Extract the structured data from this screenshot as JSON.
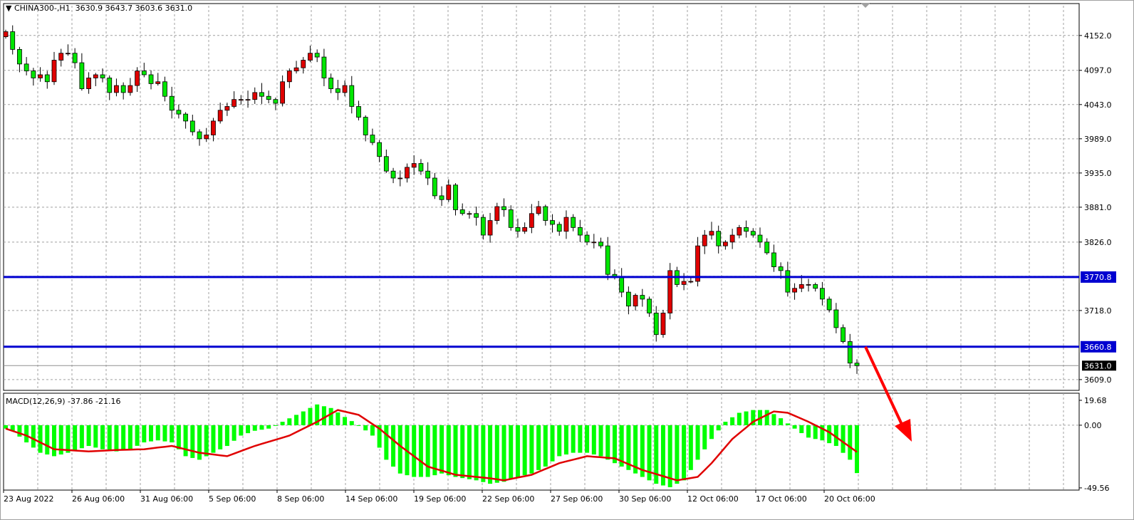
{
  "header": {
    "symbol": "CHINA300-,H1",
    "open": "3630.9",
    "high": "3643.7",
    "low": "3603.6",
    "close": "3631.0"
  },
  "macd_header": {
    "label": "MACD(12,26,9)",
    "main": "-37.86",
    "signal": "-21.16"
  },
  "colors": {
    "bull": "#e00000",
    "bear": "#00e600",
    "hline": "#0000d0",
    "histogram": "#00ff00",
    "signal": "#e00000",
    "arrow": "#ff0000"
  },
  "chart_data": [
    {
      "type": "candlestick",
      "ylim": [
        3592,
        4199
      ],
      "grid": true,
      "price_ticks": [
        "4152.0",
        "4097.0",
        "4043.0",
        "3989.0",
        "3935.0",
        "3881.0",
        "3826.0",
        "3718.0",
        "3609.0"
      ],
      "price_tick_values": [
        4152,
        4097,
        4043,
        3989,
        3935,
        3881,
        3826,
        3718,
        3609
      ],
      "x_tick_labels": [
        "23 Aug 2022",
        "26 Aug 06:00",
        "31 Aug 06:00",
        "5 Sep 06:00",
        "8 Sep 06:00",
        "14 Sep 06:00",
        "19 Sep 06:00",
        "22 Sep 06:00",
        "27 Sep 06:00",
        "30 Sep 06:00",
        "12 Oct 06:00",
        "17 Oct 06:00",
        "20 Oct 06:00"
      ],
      "first_open": 4150,
      "close": [
        4158,
        4130,
        4107,
        4096,
        4085,
        4090,
        4079,
        4113,
        4124,
        4124,
        4109,
        4068,
        4085,
        4090,
        4085,
        4062,
        4073,
        4062,
        4073,
        4096,
        4090,
        4076,
        4079,
        4056,
        4034,
        4028,
        4017,
        4000,
        3989,
        3995,
        4017,
        4034,
        4040,
        4051,
        4051,
        4051,
        4062,
        4056,
        4051,
        4045,
        4079,
        4096,
        4101,
        4113,
        4124,
        4118,
        4085,
        4068,
        4062,
        4073,
        4040,
        4023,
        3995,
        3983,
        3961,
        3938,
        3927,
        3927,
        3944,
        3950,
        3938,
        3927,
        3899,
        3893,
        3916,
        3877,
        3871,
        3871,
        3865,
        3837,
        3860,
        3882,
        3877,
        3849,
        3843,
        3849,
        3871,
        3882,
        3860,
        3854,
        3843,
        3865,
        3849,
        3837,
        3826,
        3826,
        3820,
        3775,
        3770,
        3747,
        3725,
        3742,
        3736,
        3714,
        3680,
        3714,
        3781,
        3759,
        3764,
        3764,
        3820,
        3837,
        3843,
        3820,
        3826,
        3837,
        3849,
        3843,
        3837,
        3826,
        3809,
        3787,
        3781,
        3747,
        3753,
        3759,
        3759,
        3753,
        3736,
        3719,
        3691,
        3669,
        3635,
        3631
      ],
      "horizontal_levels": [
        {
          "value": 3770.8,
          "label": "3770.8"
        },
        {
          "value": 3660.8,
          "label": "3660.8"
        }
      ],
      "current_price": {
        "value": 3631.0,
        "label": "3631.0"
      }
    },
    {
      "type": "bar+line",
      "title": "MACD(12,26,9)",
      "ylim": [
        -51.3,
        25.3
      ],
      "y_ticks": [
        "19.68",
        "0.00",
        "-49.56"
      ],
      "y_tick_values": [
        19.68,
        0,
        -49.56
      ],
      "histogram_points": [
        [
          0,
          -2.7
        ],
        [
          1,
          -4.4
        ],
        [
          3,
          -13.6
        ],
        [
          5,
          -21.8
        ],
        [
          7,
          -24.5
        ],
        [
          9,
          -21.8
        ],
        [
          12,
          -16.4
        ],
        [
          14,
          -19
        ],
        [
          16,
          -20.7
        ],
        [
          18,
          -19
        ],
        [
          20,
          -13.6
        ],
        [
          22,
          -12
        ],
        [
          24,
          -13.6
        ],
        [
          26,
          -24.5
        ],
        [
          28,
          -27.3
        ],
        [
          30,
          -21.8
        ],
        [
          32,
          -16.4
        ],
        [
          34,
          -8.2
        ],
        [
          36,
          -4.4
        ],
        [
          38,
          -2.7
        ],
        [
          40,
          2.7
        ],
        [
          43,
          10.9
        ],
        [
          45,
          16.4
        ],
        [
          47,
          13.6
        ],
        [
          49,
          6.5
        ],
        [
          51,
          0
        ],
        [
          53,
          -8.2
        ],
        [
          55,
          -27.3
        ],
        [
          57,
          -38.2
        ],
        [
          59,
          -40.9
        ],
        [
          61,
          -40.9
        ],
        [
          63,
          -38.2
        ],
        [
          65,
          -40.9
        ],
        [
          68,
          -43.6
        ],
        [
          70,
          -46.3
        ],
        [
          72,
          -44.7
        ],
        [
          74,
          -40.9
        ],
        [
          76,
          -38.2
        ],
        [
          78,
          -32.7
        ],
        [
          80,
          -24.5
        ],
        [
          82,
          -21.8
        ],
        [
          84,
          -21.8
        ],
        [
          86,
          -24.5
        ],
        [
          88,
          -30
        ],
        [
          90,
          -35.4
        ],
        [
          92,
          -40.9
        ],
        [
          94,
          -46.3
        ],
        [
          96,
          -49
        ],
        [
          98,
          -43.6
        ],
        [
          100,
          -27.3
        ],
        [
          102,
          -10.9
        ],
        [
          104,
          2.7
        ],
        [
          106,
          9.8
        ],
        [
          108,
          12
        ],
        [
          110,
          12
        ],
        [
          112,
          5.5
        ],
        [
          114,
          -2.7
        ],
        [
          116,
          -9.8
        ],
        [
          118,
          -12
        ],
        [
          120,
          -16.4
        ],
        [
          122,
          -27.3
        ],
        [
          123,
          -37.86
        ]
      ],
      "signal_points": [
        [
          0,
          -2.7
        ],
        [
          3,
          -8.2
        ],
        [
          7,
          -19
        ],
        [
          12,
          -20.7
        ],
        [
          16,
          -19.6
        ],
        [
          20,
          -19
        ],
        [
          24,
          -16.4
        ],
        [
          28,
          -21.8
        ],
        [
          32,
          -24.5
        ],
        [
          36,
          -16.4
        ],
        [
          41,
          -8.2
        ],
        [
          45,
          2.7
        ],
        [
          48,
          12
        ],
        [
          51,
          8.2
        ],
        [
          54,
          -2.7
        ],
        [
          57,
          -16.4
        ],
        [
          61,
          -32.7
        ],
        [
          65,
          -39.2
        ],
        [
          70,
          -42
        ],
        [
          72,
          -43.6
        ],
        [
          76,
          -39.2
        ],
        [
          80,
          -30
        ],
        [
          84,
          -24.5
        ],
        [
          88,
          -26.2
        ],
        [
          92,
          -35.4
        ],
        [
          97,
          -43.6
        ],
        [
          100,
          -40.9
        ],
        [
          102,
          -30
        ],
        [
          105,
          -10.9
        ],
        [
          108,
          2.7
        ],
        [
          111,
          10.9
        ],
        [
          113,
          9.8
        ],
        [
          116,
          2.7
        ],
        [
          119,
          -5.5
        ],
        [
          123,
          -21.16
        ]
      ]
    }
  ]
}
